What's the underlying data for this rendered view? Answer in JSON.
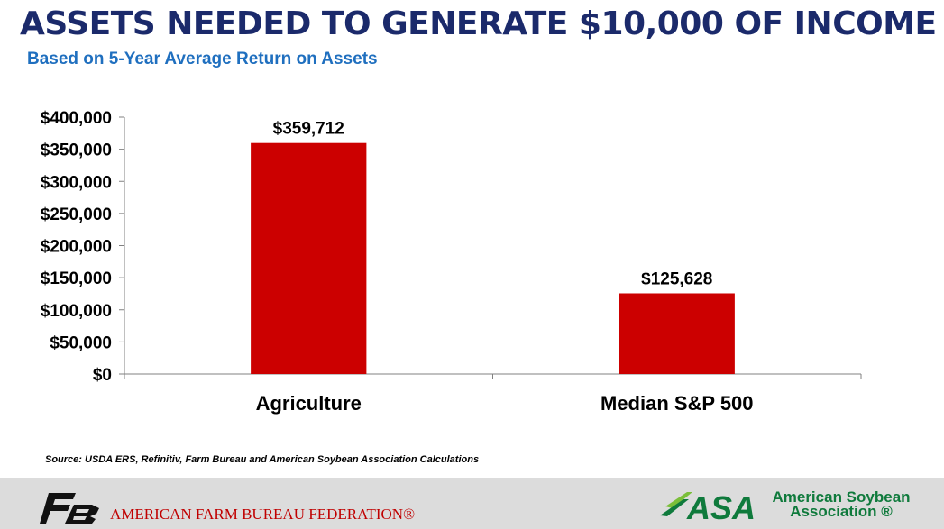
{
  "title": "ASSETS NEEDED TO GENERATE $10,000 OF INCOME",
  "subtitle": "Based on 5-Year Average Return on Assets",
  "source": "Source: USDA ERS, Refinitiv, Farm Bureau and American Soybean Association Calculations",
  "footer": {
    "fb_name": "AMERICAN FARM BUREAU FEDERATION®",
    "asa_mark": "ASA",
    "asa_line1": "American Soybean",
    "asa_line2": "Association ®"
  },
  "colors": {
    "bar": "#cc0000",
    "title": "#1b2a6b",
    "subtitle": "#1f6fbf",
    "asa_green": "#0f7a3c",
    "fb_red": "#c00000"
  },
  "chart_data": {
    "type": "bar",
    "title": "ASSETS NEEDED TO GENERATE $10,000 OF INCOME",
    "subtitle": "Based on 5-Year Average Return on Assets",
    "categories": [
      "Agriculture",
      "Median S&P 500"
    ],
    "values": [
      359712,
      125628
    ],
    "data_labels": [
      "$359,712",
      "$125,628"
    ],
    "ylim": [
      0,
      400000
    ],
    "y_ticks": [
      0,
      50000,
      100000,
      150000,
      200000,
      250000,
      300000,
      350000,
      400000
    ],
    "y_tick_labels": [
      "$0",
      "$50,000",
      "$100,000",
      "$150,000",
      "$200,000",
      "$250,000",
      "$300,000",
      "$350,000",
      "$400,000"
    ],
    "xlabel": "",
    "ylabel": "",
    "grid": false,
    "legend": "none"
  }
}
